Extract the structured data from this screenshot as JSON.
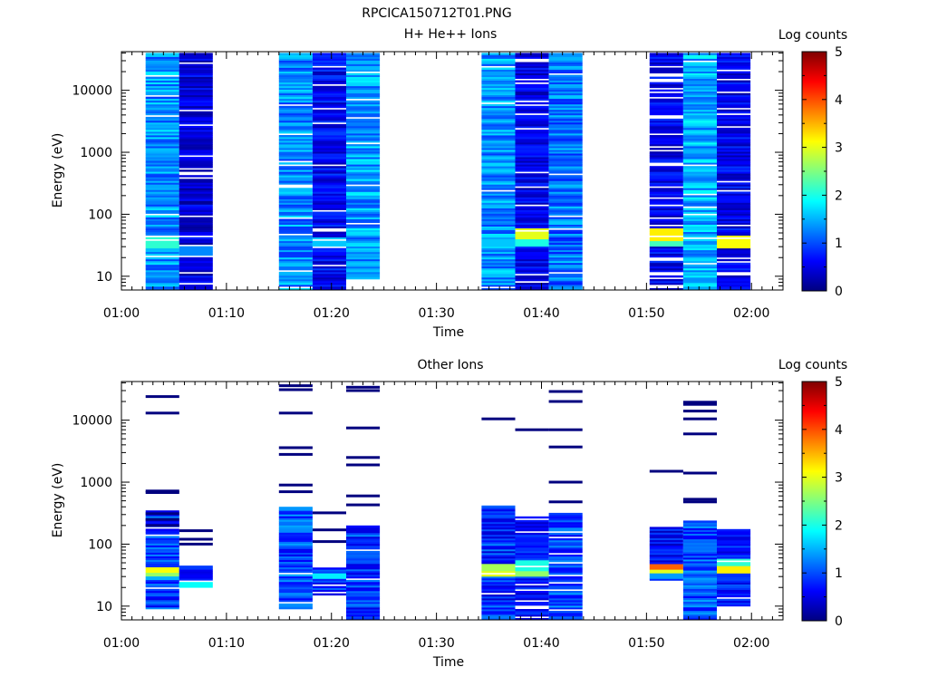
{
  "figure": {
    "title": "RPCICA150712T01.PNG"
  },
  "colormap": {
    "stops": [
      "#00007f",
      "#0000ff",
      "#007fff",
      "#00ffff",
      "#7fff7f",
      "#ffff00",
      "#ff7f00",
      "#ff0000",
      "#7f0000"
    ]
  },
  "chart_data": [
    {
      "type": "heatmap",
      "title": "H+ He++ Ions",
      "xlabel": "Time",
      "ylabel": "Energy (eV)",
      "x_ticks": [
        "01:00",
        "01:10",
        "01:20",
        "01:30",
        "01:40",
        "01:50",
        "02:00"
      ],
      "x_range_minutes": [
        0,
        63
      ],
      "y_scale": "log",
      "y_ticks": [
        "10",
        "100",
        "1000",
        "10000"
      ],
      "y_range": [
        6,
        42000
      ],
      "colorbar": {
        "label": "Log counts",
        "ticks": [
          "0",
          "1",
          "2",
          "3",
          "4",
          "5"
        ],
        "range": [
          0,
          5
        ]
      },
      "columns": [
        {
          "t_start": 2.3,
          "t_end": 5.5,
          "e_min": 6,
          "e_max": 40000,
          "pattern": "varied",
          "level": 1.35,
          "hot": [
            {
              "e_lo": 28,
              "e_hi": 42,
              "level": 2.1
            }
          ]
        },
        {
          "t_start": 5.5,
          "t_end": 8.7,
          "e_min": 6,
          "e_max": 40000,
          "pattern": "dark",
          "level": 0.45,
          "hot": [
            {
              "e_lo": 20,
              "e_hi": 30,
              "level": 1.3
            }
          ]
        },
        {
          "t_start": 15.0,
          "t_end": 18.2,
          "e_min": 6,
          "e_max": 40000,
          "pattern": "varied",
          "level": 1.3,
          "hot": []
        },
        {
          "t_start": 18.2,
          "t_end": 21.4,
          "e_min": 6,
          "e_max": 40000,
          "pattern": "dark",
          "level": 0.6,
          "hot": [
            {
              "e_lo": 30,
              "e_hi": 42,
              "level": 1.6
            }
          ]
        },
        {
          "t_start": 21.4,
          "t_end": 24.6,
          "e_min": 9,
          "e_max": 40000,
          "pattern": "bright",
          "level": 1.4,
          "hot": []
        },
        {
          "t_start": 34.3,
          "t_end": 37.5,
          "e_min": 6,
          "e_max": 40000,
          "pattern": "varied",
          "level": 1.35,
          "hot": [
            {
              "e_lo": 30,
              "e_hi": 40,
              "level": 1.6
            }
          ]
        },
        {
          "t_start": 37.5,
          "t_end": 40.7,
          "e_min": 6,
          "e_max": 40000,
          "pattern": "dark",
          "level": 0.5,
          "hot": [
            {
              "e_lo": 40,
              "e_hi": 60,
              "level": 3.0
            },
            {
              "e_lo": 30,
              "e_hi": 40,
              "level": 2.0
            }
          ]
        },
        {
          "t_start": 40.7,
          "t_end": 43.9,
          "e_min": 6,
          "e_max": 40000,
          "pattern": "varied",
          "level": 1.2,
          "hot": []
        },
        {
          "t_start": 50.3,
          "t_end": 53.5,
          "e_min": 6,
          "e_max": 40000,
          "pattern": "dark",
          "level": 0.55,
          "hot": [
            {
              "e_lo": 38,
              "e_hi": 60,
              "level": 3.2
            },
            {
              "e_lo": 30,
              "e_hi": 38,
              "level": 2.2
            }
          ]
        },
        {
          "t_start": 53.5,
          "t_end": 56.7,
          "e_min": 6,
          "e_max": 40000,
          "pattern": "bright",
          "level": 1.5,
          "hot": []
        },
        {
          "t_start": 56.7,
          "t_end": 59.9,
          "e_min": 6,
          "e_max": 40000,
          "pattern": "dark",
          "level": 0.55,
          "hot": [
            {
              "e_lo": 28,
              "e_hi": 45,
              "level": 3.1
            }
          ]
        }
      ]
    },
    {
      "type": "heatmap",
      "title": "Other Ions",
      "xlabel": "Time",
      "ylabel": "Energy (eV)",
      "x_ticks": [
        "01:00",
        "01:10",
        "01:20",
        "01:30",
        "01:40",
        "01:50",
        "02:00"
      ],
      "x_range_minutes": [
        0,
        63
      ],
      "y_scale": "log",
      "y_ticks": [
        "10",
        "100",
        "1000",
        "10000"
      ],
      "y_range": [
        6,
        42000
      ],
      "colorbar": {
        "label": "Log counts",
        "ticks": [
          "0",
          "1",
          "2",
          "3",
          "4",
          "5"
        ],
        "range": [
          0,
          5
        ]
      },
      "columns": [
        {
          "t_start": 2.3,
          "t_end": 5.5,
          "e_min": 9,
          "e_max": 350,
          "pattern": "varied",
          "level": 0.9,
          "lines": [
            24000,
            13000,
            720,
            680,
            310,
            250,
            200
          ],
          "hot": [
            {
              "e_lo": 36,
              "e_hi": 44,
              "level": 3.1
            },
            {
              "e_lo": 30,
              "e_hi": 36,
              "level": 2.6
            },
            {
              "e_lo": 26,
              "e_hi": 30,
              "level": 1.5
            }
          ]
        },
        {
          "t_start": 5.5,
          "t_end": 8.7,
          "e_min": 20,
          "e_max": 45,
          "pattern": "dark",
          "level": 0.7,
          "lines": [
            165,
            120,
            100
          ],
          "hot": [
            {
              "e_lo": 20,
              "e_hi": 26,
              "level": 1.9
            }
          ]
        },
        {
          "t_start": 15.0,
          "t_end": 18.2,
          "e_min": 9,
          "e_max": 400,
          "pattern": "varied",
          "level": 1.0,
          "lines": [
            36000,
            31000,
            13000,
            3600,
            2800,
            900,
            700
          ],
          "hot": []
        },
        {
          "t_start": 18.2,
          "t_end": 21.4,
          "e_min": 15,
          "e_max": 45,
          "pattern": "dark",
          "level": 0.8,
          "lines": [
            320,
            170,
            110
          ],
          "hot": [
            {
              "e_lo": 28,
              "e_hi": 34,
              "level": 1.8
            }
          ]
        },
        {
          "t_start": 21.4,
          "t_end": 24.6,
          "e_min": 6,
          "e_max": 200,
          "pattern": "varied",
          "level": 0.9,
          "lines": [
            34000,
            30000,
            7500,
            2500,
            1900,
            600,
            430
          ],
          "hot": []
        },
        {
          "t_start": 34.3,
          "t_end": 37.5,
          "e_min": 6,
          "e_max": 420,
          "pattern": "varied",
          "level": 0.85,
          "lines": [
            10500
          ],
          "hot": [
            {
              "e_lo": 38,
              "e_hi": 48,
              "level": 2.7
            },
            {
              "e_lo": 30,
              "e_hi": 38,
              "level": 3.0
            }
          ]
        },
        {
          "t_start": 37.5,
          "t_end": 40.7,
          "e_min": 6,
          "e_max": 280,
          "pattern": "dark",
          "level": 0.7,
          "lines": [
            7000
          ],
          "hot": [
            {
              "e_lo": 36,
              "e_hi": 55,
              "level": 2.0
            },
            {
              "e_lo": 30,
              "e_hi": 36,
              "level": 2.6
            }
          ]
        },
        {
          "t_start": 40.7,
          "t_end": 43.9,
          "e_min": 6,
          "e_max": 320,
          "pattern": "varied",
          "level": 1.0,
          "lines": [
            29000,
            20000,
            7000,
            3700,
            1000,
            480
          ],
          "hot": []
        },
        {
          "t_start": 50.3,
          "t_end": 53.5,
          "e_min": 26,
          "e_max": 190,
          "pattern": "dark",
          "level": 0.6,
          "lines": [
            1500
          ],
          "hot": [
            {
              "e_lo": 40,
              "e_hi": 48,
              "level": 3.9
            },
            {
              "e_lo": 34,
              "e_hi": 40,
              "level": 3.0
            },
            {
              "e_lo": 28,
              "e_hi": 34,
              "level": 1.4
            }
          ]
        },
        {
          "t_start": 53.5,
          "t_end": 56.7,
          "e_min": 6,
          "e_max": 240,
          "pattern": "varied",
          "level": 1.0,
          "lines": [
            19500,
            18000,
            14000,
            10500,
            6000,
            1400,
            530,
            480
          ],
          "hot": []
        },
        {
          "t_start": 56.7,
          "t_end": 59.9,
          "e_min": 10,
          "e_max": 175,
          "pattern": "dark",
          "level": 0.7,
          "lines": [],
          "hot": [
            {
              "e_lo": 34,
              "e_hi": 45,
              "level": 3.2
            },
            {
              "e_lo": 45,
              "e_hi": 58,
              "level": 2.1
            }
          ]
        }
      ]
    }
  ]
}
